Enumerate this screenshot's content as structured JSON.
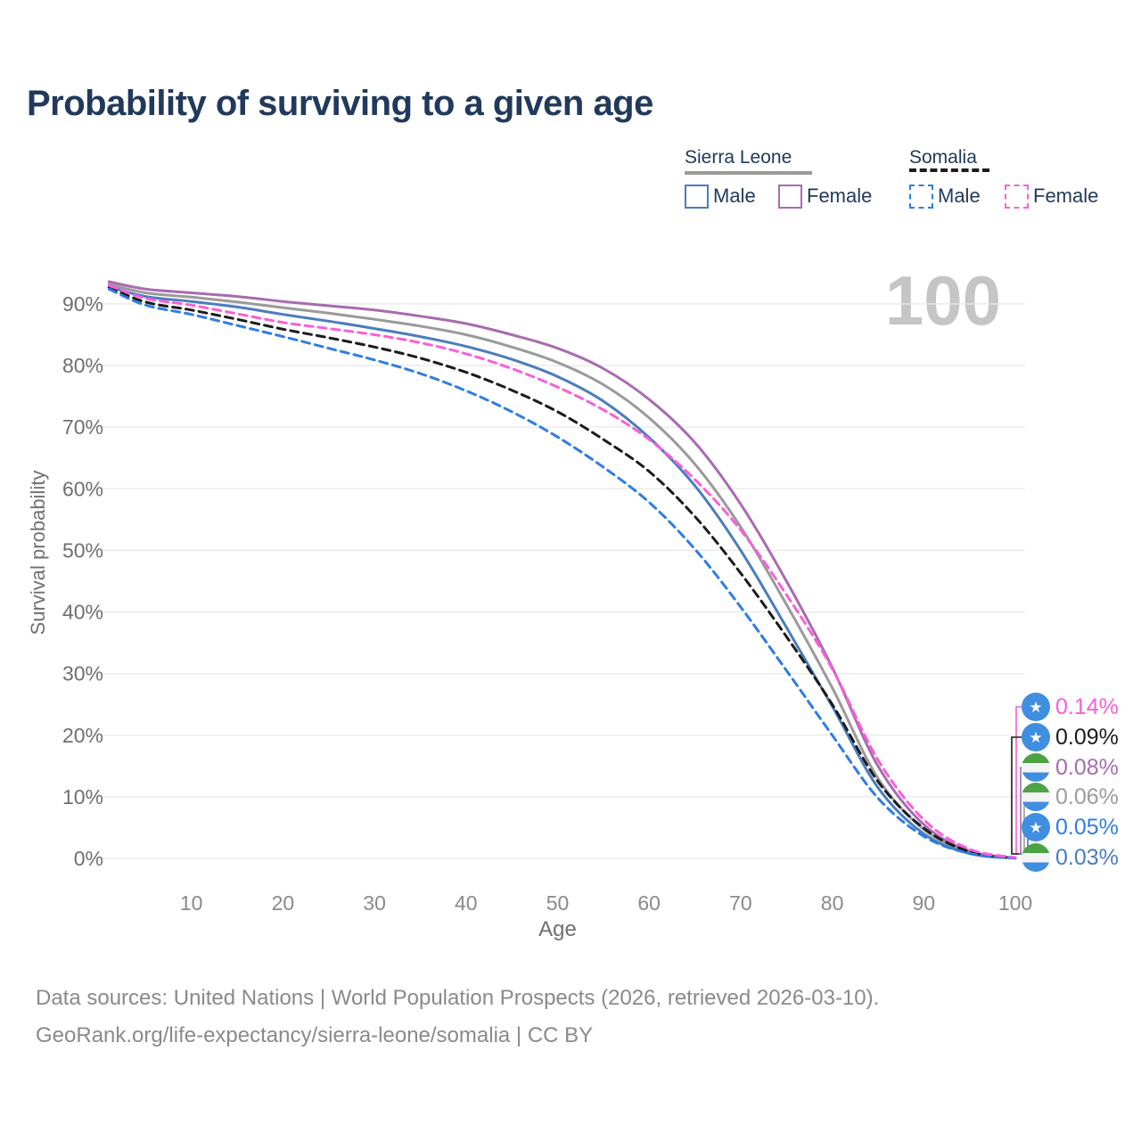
{
  "title": "Probability of surviving to a given age",
  "watermark": "100",
  "legend": {
    "groups": [
      {
        "name": "Sierra Leone",
        "line_style": "solid",
        "line_color": "#9a9a9a",
        "items": [
          {
            "label": "Male",
            "color": "#4a7dbd",
            "style": "solid"
          },
          {
            "label": "Female",
            "color": "#a86bb0",
            "style": "solid"
          }
        ]
      },
      {
        "name": "Somalia",
        "line_style": "dashed",
        "line_color": "#1b1b1b",
        "items": [
          {
            "label": "Male",
            "color": "#2e7de5",
            "style": "dashed"
          },
          {
            "label": "Female",
            "color": "#f95fd7",
            "style": "dashed"
          }
        ]
      }
    ]
  },
  "end_labels": [
    {
      "value": "0.14%",
      "color": "#f95fd7",
      "flag": "somalia",
      "series": "Somalia Female"
    },
    {
      "value": "0.09%",
      "color": "#1b1b1b",
      "flag": "somalia",
      "series": "Somalia"
    },
    {
      "value": "0.08%",
      "color": "#a86bb0",
      "flag": "sierra-leone",
      "series": "Sierra Leone Female"
    },
    {
      "value": "0.06%",
      "color": "#9c9c9c",
      "flag": "sierra-leone",
      "series": "Sierra Leone"
    },
    {
      "value": "0.05%",
      "color": "#2e7de5",
      "flag": "somalia",
      "series": "Somalia Male"
    },
    {
      "value": "0.03%",
      "color": "#4a7dbd",
      "flag": "sierra-leone",
      "series": "Sierra Leone Male"
    }
  ],
  "footer": {
    "line1": "Data sources: United Nations | World Population Prospects (2026, retrieved 2026-03-10).",
    "line2": "GeoRank.org/life-expectancy/sierra-leone/somalia | CC BY"
  },
  "chart_data": {
    "type": "line",
    "title": "Probability of surviving to a given age",
    "xlabel": "Age",
    "ylabel": "Survival probability",
    "x_ticks": [
      10,
      20,
      30,
      40,
      50,
      60,
      70,
      80,
      90,
      100
    ],
    "y_tick_labels": [
      "0%",
      "10%",
      "20%",
      "30%",
      "40%",
      "50%",
      "60%",
      "70%",
      "80%",
      "90%"
    ],
    "y_tick_values": [
      0,
      10,
      20,
      30,
      40,
      50,
      60,
      70,
      80,
      90
    ],
    "xlim": [
      0,
      100
    ],
    "ylim": [
      0,
      100
    ],
    "grid": "horizontal",
    "legend_position": "top-right",
    "ages": [
      1,
      5,
      10,
      15,
      20,
      25,
      30,
      35,
      40,
      45,
      50,
      55,
      60,
      65,
      70,
      75,
      80,
      85,
      90,
      95,
      100
    ],
    "series": [
      {
        "name": "Sierra Leone",
        "color": "#9a9a9a",
        "style": "solid",
        "values": [
          93.2,
          91.8,
          91.1,
          90.3,
          89.4,
          88.5,
          87.5,
          86.4,
          85.0,
          83.0,
          80.5,
          76.9,
          71.5,
          64.0,
          53.8,
          41.2,
          27.7,
          13.0,
          4.7,
          1.0,
          0.06
        ]
      },
      {
        "name": "Sierra Leone Male",
        "color": "#4a7dbd",
        "style": "solid",
        "values": [
          92.8,
          91.2,
          90.4,
          89.5,
          88.3,
          87.2,
          86.0,
          84.7,
          83.1,
          81.0,
          78.2,
          74.2,
          68.3,
          60.5,
          50.0,
          37.5,
          24.7,
          11.5,
          4.0,
          0.8,
          0.03
        ]
      },
      {
        "name": "Sierra Leone Female",
        "color": "#a86bb0",
        "style": "solid",
        "values": [
          93.6,
          92.4,
          91.8,
          91.2,
          90.4,
          89.7,
          89.0,
          88.0,
          86.8,
          85.0,
          82.8,
          79.5,
          74.5,
          67.5,
          57.5,
          45.0,
          31.0,
          15.0,
          5.5,
          1.2,
          0.08
        ]
      },
      {
        "name": "Somalia",
        "color": "#1b1b1b",
        "style": "dashed",
        "values": [
          92.7,
          90.3,
          89.0,
          87.5,
          85.9,
          84.5,
          83.0,
          81.2,
          78.9,
          76.0,
          72.5,
          68.0,
          62.8,
          55.5,
          46.3,
          36.0,
          25.0,
          12.5,
          4.9,
          1.1,
          0.09
        ]
      },
      {
        "name": "Somalia Male",
        "color": "#2e7de5",
        "style": "dashed",
        "values": [
          92.4,
          89.8,
          88.3,
          86.5,
          84.7,
          82.8,
          80.9,
          78.7,
          75.9,
          72.5,
          68.4,
          63.5,
          57.8,
          50.2,
          40.8,
          30.5,
          20.0,
          9.8,
          3.6,
          0.8,
          0.05
        ]
      },
      {
        "name": "Somalia Female",
        "color": "#f95fd7",
        "style": "dashed",
        "values": [
          93.0,
          90.9,
          89.8,
          88.4,
          87.0,
          86.0,
          85.0,
          83.7,
          81.9,
          79.5,
          76.5,
          72.8,
          68.0,
          61.5,
          53.3,
          42.8,
          30.8,
          16.0,
          6.3,
          1.5,
          0.14
        ]
      }
    ]
  }
}
